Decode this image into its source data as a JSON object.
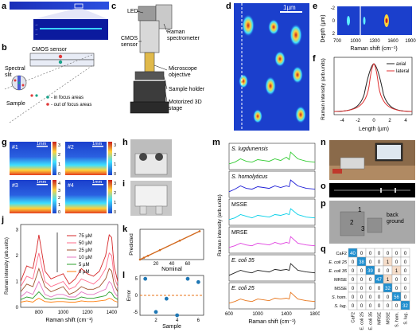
{
  "panel_letters": [
    "a",
    "b",
    "c",
    "d",
    "e",
    "f",
    "g",
    "h",
    "i",
    "j",
    "k",
    "l",
    "m",
    "n",
    "o",
    "p",
    "q"
  ],
  "panel_b": {
    "cmos_label": "CMOS sensor",
    "slit_label": "Spectral\nslit",
    "sample_label": "Sample",
    "legend_in": "- in focus areas",
    "legend_out": "- out of focus areas"
  },
  "panel_c": {
    "labels": [
      "LED",
      "Raman spectrometer",
      "CMOS sensor",
      "Microscope objective",
      "Sample holder",
      "Motorized 3D stage"
    ]
  },
  "panel_d": {
    "scalebar": "1µm"
  },
  "panel_e": {
    "ylabel": "Depth (µm)",
    "xlabel": "Raman shift (cm⁻¹)",
    "yticks": [
      "-2",
      "0",
      "2"
    ],
    "xticks": [
      "700",
      "1000",
      "1300",
      "1600",
      "1900"
    ]
  },
  "panel_f": {
    "ylabel": "Raman intensity (arb.units)",
    "xlabel": "Length (µm)",
    "xticks": [
      "-4",
      "-2",
      "0",
      "2",
      "4"
    ],
    "legend": [
      "axial",
      "lateral"
    ],
    "colors": {
      "axial": "#222222",
      "lateral": "#e03030"
    }
  },
  "panel_g": {
    "tiles": [
      "#1",
      "#2",
      "#3",
      "#4"
    ],
    "scalebar": "1mm",
    "colorbars": [
      [
        "3",
        "2",
        "1",
        "0"
      ],
      [
        "3",
        "2",
        "1",
        "0"
      ],
      [
        "4",
        "3",
        "2",
        "1",
        "0"
      ],
      [
        "3",
        "2",
        "1",
        "0"
      ]
    ]
  },
  "chart_data": [
    {
      "panel": "j",
      "type": "line",
      "xlabel": "Raman shift (cm⁻¹)",
      "ylabel": "Raman intensity (arb.units)",
      "xlim": [
        650,
        1450
      ],
      "ylim": [
        0,
        3.2
      ],
      "xticks": [
        800,
        1000,
        1200,
        1400
      ],
      "yticks": [
        0,
        1,
        2,
        3
      ],
      "x": [
        650,
        700,
        750,
        780,
        800,
        850,
        900,
        950,
        1000,
        1050,
        1100,
        1150,
        1200,
        1250,
        1300,
        1350,
        1380,
        1400,
        1420,
        1450
      ],
      "series": [
        {
          "name": "75 µM",
          "color": "#d62728",
          "values": [
            1.0,
            1.6,
            1.5,
            2.2,
            2.8,
            1.4,
            1.1,
            1.2,
            1.3,
            0.9,
            1.1,
            1.5,
            1.3,
            1.2,
            1.4,
            2.0,
            2.8,
            2.7,
            1.6,
            1.0
          ]
        },
        {
          "name": "50 µM",
          "color": "#ff6b8a",
          "values": [
            0.8,
            1.2,
            1.1,
            1.7,
            2.1,
            1.0,
            0.8,
            0.9,
            1.0,
            0.7,
            0.8,
            1.1,
            1.0,
            0.9,
            1.1,
            1.5,
            2.1,
            2.0,
            1.2,
            0.8
          ]
        },
        {
          "name": "25 µM",
          "color": "#a0522d",
          "values": [
            0.6,
            0.9,
            0.8,
            1.2,
            1.5,
            0.8,
            0.6,
            0.7,
            0.8,
            0.5,
            0.6,
            0.8,
            0.7,
            0.7,
            0.8,
            1.1,
            1.5,
            1.4,
            0.9,
            0.6
          ]
        },
        {
          "name": "10 µM",
          "color": "#e377c2",
          "values": [
            0.4,
            0.6,
            0.5,
            0.8,
            1.0,
            0.5,
            0.4,
            0.5,
            0.5,
            0.4,
            0.4,
            0.6,
            0.5,
            0.5,
            0.6,
            0.7,
            1.0,
            0.9,
            0.6,
            0.4
          ]
        },
        {
          "name": "5 µM",
          "color": "#2ca02c",
          "values": [
            0.3,
            0.4,
            0.35,
            0.5,
            0.6,
            0.35,
            0.3,
            0.35,
            0.35,
            0.3,
            0.3,
            0.4,
            0.35,
            0.35,
            0.4,
            0.45,
            0.6,
            0.55,
            0.4,
            0.3
          ]
        },
        {
          "name": "0 µM",
          "color": "#ff7f0e",
          "values": [
            0.2,
            0.25,
            0.2,
            0.3,
            0.35,
            0.22,
            0.2,
            0.22,
            0.22,
            0.2,
            0.2,
            0.25,
            0.22,
            0.22,
            0.25,
            0.28,
            0.35,
            0.32,
            0.25,
            0.2
          ]
        }
      ]
    },
    {
      "panel": "k",
      "type": "scatter",
      "xlabel": "Nominal",
      "ylabel": "Predicted",
      "xlim": [
        0,
        80
      ],
      "ylim": [
        0,
        80
      ],
      "xticks": [
        20,
        40,
        60
      ],
      "series": [
        {
          "name": "",
          "color": "#d2691e",
          "x": [
            0,
            5,
            10,
            25,
            50,
            75
          ],
          "values": [
            0,
            5,
            10,
            25,
            50,
            75
          ]
        }
      ]
    },
    {
      "panel": "l",
      "type": "scatter",
      "xlabel": "Sample",
      "ylabel": "Error",
      "xlim": [
        0.5,
        6.5
      ],
      "ylim": [
        -6,
        6
      ],
      "xticks": [
        2,
        4,
        6
      ],
      "yticks": [
        -5,
        0,
        5
      ],
      "series": [
        {
          "name": "",
          "color": "#1f77b4",
          "x": [
            1,
            2,
            3,
            4,
            5,
            6
          ],
          "values": [
            5,
            -5,
            -1,
            -7,
            5,
            4
          ]
        }
      ]
    },
    {
      "panel": "m",
      "type": "line",
      "xlabel": "Raman shift (cm⁻¹)",
      "ylabel": "Raman intensity (arb.units)",
      "xlim": [
        600,
        1800
      ],
      "xticks": [
        600,
        1000,
        1400,
        1800
      ],
      "series": [
        {
          "name": "S. lugdunensis",
          "color": "#33cc33",
          "values": [
            0.2,
            0.3,
            0.5,
            0.35,
            0.3,
            0.45,
            0.4,
            0.35,
            0.5,
            0.4,
            0.6,
            0.45,
            0.9,
            0.5,
            0.35,
            0.3
          ]
        },
        {
          "name": "S. homolyticus",
          "color": "#1f1fd6",
          "values": [
            0.2,
            0.35,
            0.55,
            0.4,
            0.35,
            0.5,
            0.45,
            0.4,
            0.55,
            0.45,
            0.55,
            0.5,
            0.9,
            0.55,
            0.4,
            0.35
          ]
        },
        {
          "name": "MSSE",
          "color": "#00cfe8",
          "values": [
            0.2,
            0.3,
            0.5,
            0.4,
            0.3,
            0.45,
            0.4,
            0.35,
            0.5,
            0.45,
            0.55,
            0.5,
            0.85,
            0.5,
            0.35,
            0.3
          ]
        },
        {
          "name": "MRSE",
          "color": "#e040e0",
          "values": [
            0.2,
            0.3,
            0.45,
            0.35,
            0.3,
            0.45,
            0.4,
            0.35,
            0.5,
            0.4,
            0.5,
            0.45,
            0.85,
            0.45,
            0.35,
            0.3
          ]
        },
        {
          "name": "E. coli 35",
          "color": "#222222",
          "values": [
            0.2,
            0.35,
            0.5,
            0.4,
            0.35,
            0.5,
            0.45,
            0.4,
            0.55,
            0.5,
            0.55,
            0.5,
            0.9,
            0.5,
            0.4,
            0.35
          ]
        },
        {
          "name": "E. coli 25",
          "color": "#e8751a",
          "values": [
            0.2,
            0.3,
            0.45,
            0.35,
            0.3,
            0.45,
            0.4,
            0.35,
            0.5,
            0.45,
            0.5,
            0.45,
            0.85,
            0.45,
            0.35,
            0.3
          ]
        }
      ],
      "x": [
        600,
        680,
        760,
        840,
        920,
        1000,
        1080,
        1160,
        1240,
        1320,
        1400,
        1440,
        1460,
        1560,
        1680,
        1800
      ]
    },
    {
      "panel": "q",
      "type": "heatmap",
      "categories": [
        "CaF2",
        "E. coli 25",
        "E. coli 35",
        "MRSE",
        "MSSE",
        "S. hom.",
        "S. lug."
      ],
      "values": [
        [
          40,
          0,
          0,
          0,
          0,
          0,
          0
        ],
        [
          0,
          38,
          0,
          0,
          1,
          0,
          0
        ],
        [
          0,
          0,
          39,
          0,
          0,
          1,
          0
        ],
        [
          0,
          0,
          0,
          47,
          1,
          0,
          0
        ],
        [
          0,
          0,
          0,
          0,
          32,
          0,
          0
        ],
        [
          0,
          0,
          0,
          0,
          0,
          56,
          0
        ],
        [
          0,
          0,
          0,
          0,
          0,
          0,
          32
        ]
      ]
    }
  ],
  "panel_p": {
    "labels": [
      "1",
      "2",
      "3"
    ],
    "background": "back\nground"
  }
}
